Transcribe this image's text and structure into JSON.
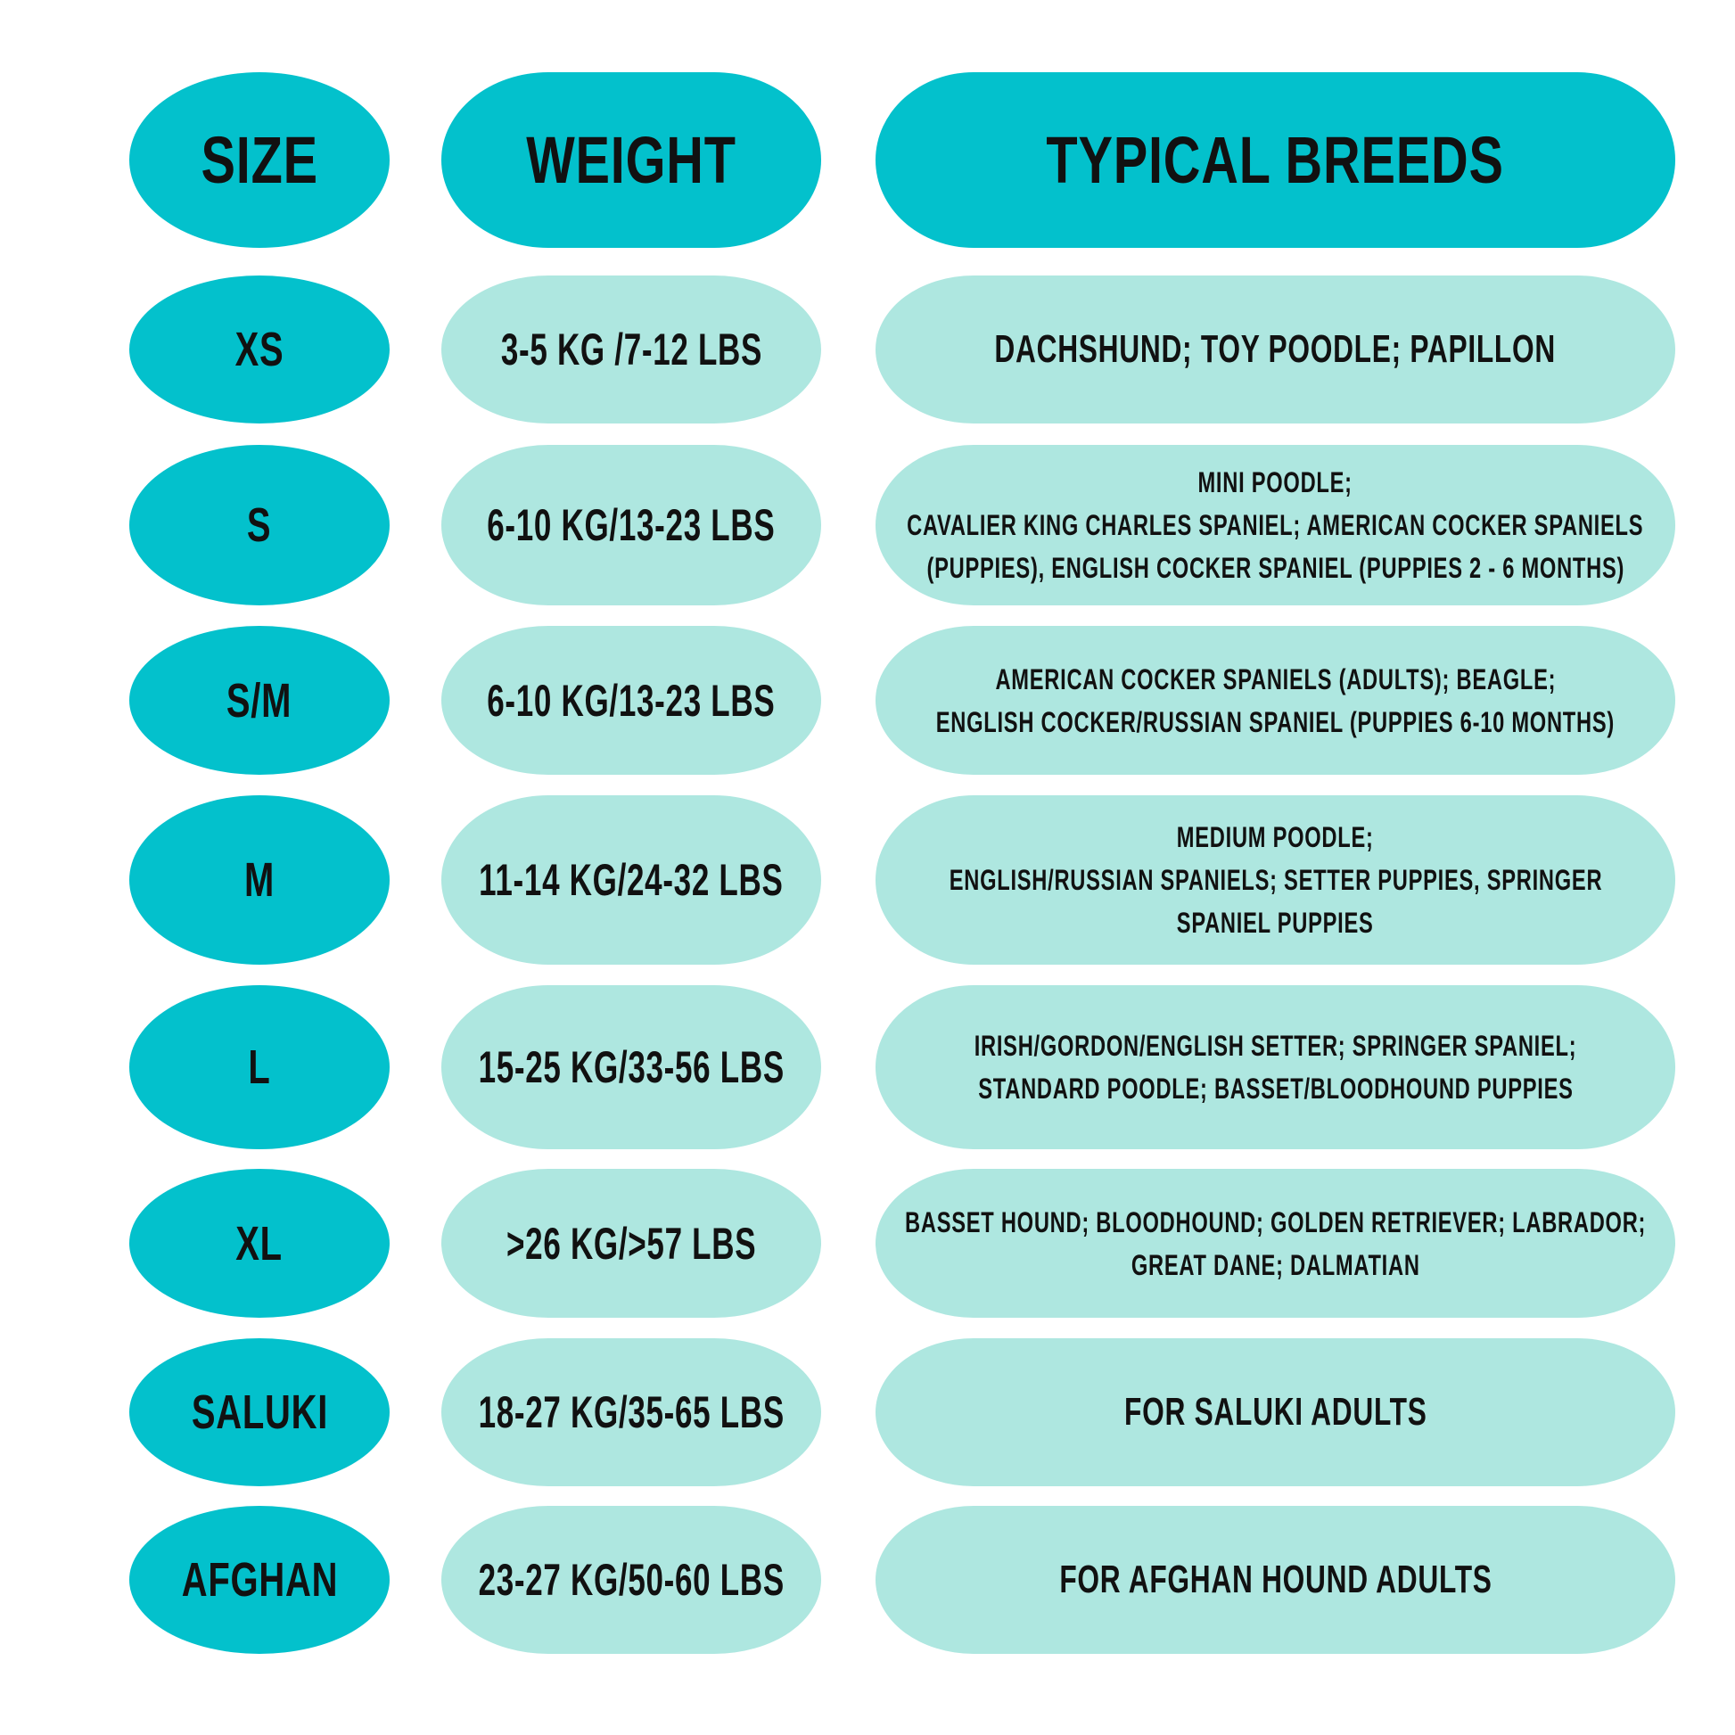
{
  "colors": {
    "header": "#03C1CC",
    "size_cell": "#03C1CC",
    "value_cell": "#AEE7E0"
  },
  "headers": {
    "size": "SIZE",
    "weight": "WEIGHT",
    "breeds": "TYPICAL BREEDS"
  },
  "rows": [
    {
      "size": "XS",
      "weight": "3-5 KG /7-12 LBS",
      "breeds": [
        "DACHSHUND; TOY POODLE; PAPILLON"
      ]
    },
    {
      "size": "S",
      "weight": "6-10 KG/13-23 LBS",
      "breeds": [
        "MINI POODLE;",
        "CAVALIER KING CHARLES SPANIEL; AMERICAN COCKER SPANIELS",
        "(PUPPIES), ENGLISH COCKER SPANIEL (PUPPIES 2 - 6 MONTHS)"
      ]
    },
    {
      "size": "S/M",
      "weight": "6-10 KG/13-23 LBS",
      "breeds": [
        "AMERICAN COCKER SPANIELS (ADULTS); BEAGLE;",
        "ENGLISH COCKER/RUSSIAN SPANIEL (PUPPIES 6-10 MONTHS)"
      ]
    },
    {
      "size": "M",
      "weight": "11-14 KG/24-32 LBS",
      "breeds": [
        "MEDIUM POODLE;",
        "ENGLISH/RUSSIAN SPANIELS; SETTER PUPPIES, SPRINGER",
        "SPANIEL PUPPIES"
      ]
    },
    {
      "size": "L",
      "weight": "15-25 KG/33-56 LBS",
      "breeds": [
        "IRISH/GORDON/ENGLISH SETTER; SPRINGER SPANIEL;",
        "STANDARD POODLE; BASSET/BLOODHOUND PUPPIES"
      ]
    },
    {
      "size": "XL",
      "weight": ">26 KG/>57 LBS",
      "breeds": [
        "BASSET HOUND; BLOODHOUND; GOLDEN RETRIEVER; LABRADOR;",
        "GREAT DANE; DALMATIAN"
      ]
    },
    {
      "size": "SALUKI",
      "weight": "18-27 KG/35-65 LBS",
      "breeds": [
        "FOR SALUKI ADULTS"
      ]
    },
    {
      "size": "AFGHAN",
      "weight": "23-27 KG/50-60 LBS",
      "breeds": [
        "FOR AFGHAN HOUND ADULTS"
      ]
    }
  ]
}
